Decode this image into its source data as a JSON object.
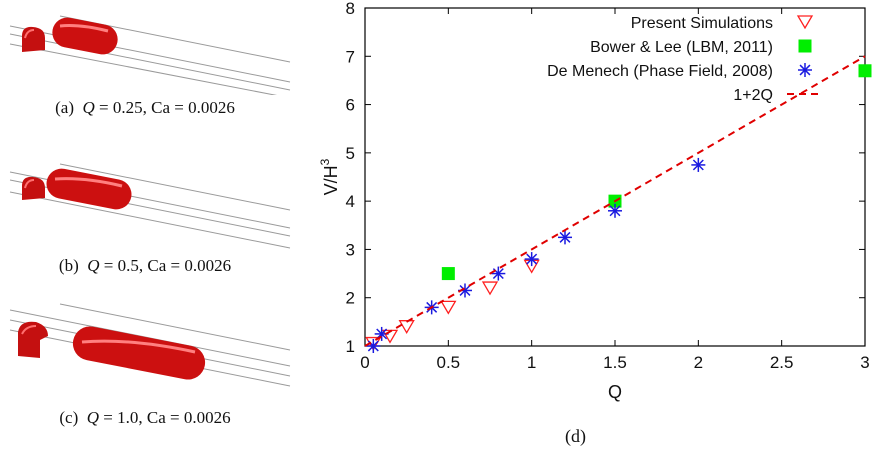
{
  "panels": [
    {
      "label": "(a)",
      "q_sym": "Q",
      "q_val": "0.25",
      "ca_sym": "Ca",
      "ca_val": "0.0026"
    },
    {
      "label": "(b)",
      "q_sym": "Q",
      "q_val": "0.5",
      "ca_sym": "Ca",
      "ca_val": "0.0026"
    },
    {
      "label": "(c)",
      "q_sym": "Q",
      "q_val": "1.0",
      "ca_sym": "Ca",
      "ca_val": "0.0026"
    }
  ],
  "colors": {
    "droplet": "#d01010",
    "channel_line": "#9a9a9a",
    "present": "#ff2020",
    "bower": "#00ee00",
    "demenech": "#1a1ae0",
    "fit": "#e00000"
  },
  "chart_data": {
    "type": "scatter",
    "panel_label": "(d)",
    "xlabel": "Q",
    "ylabel_base": "V/H",
    "ylabel_sup": "3",
    "xlim": [
      0,
      3
    ],
    "ylim": [
      1,
      8
    ],
    "xticks": [
      "0",
      "0.5",
      "1",
      "1.5",
      "2",
      "2.5",
      "3"
    ],
    "yticks": [
      "1",
      "2",
      "3",
      "4",
      "5",
      "6",
      "7",
      "8"
    ],
    "grid": false,
    "legend_position": "top-right",
    "series": [
      {
        "name": "Present Simulations",
        "marker": "triangle-down-open",
        "x": [
          0.05,
          0.15,
          0.25,
          0.5,
          0.75,
          1.0
        ],
        "y": [
          1.05,
          1.2,
          1.4,
          1.8,
          2.2,
          2.65
        ]
      },
      {
        "name": "Bower & Lee (LBM, 2011)",
        "marker": "square-filled",
        "x": [
          0.5,
          1.5,
          3.0
        ],
        "y": [
          2.5,
          4.0,
          6.7
        ]
      },
      {
        "name": "De Menech (Phase Field, 2008)",
        "marker": "asterisk",
        "x": [
          0.05,
          0.1,
          0.4,
          0.6,
          0.8,
          1.0,
          1.2,
          1.5,
          2.0
        ],
        "y": [
          1.0,
          1.25,
          1.8,
          2.15,
          2.5,
          2.8,
          3.25,
          3.8,
          4.75
        ]
      },
      {
        "name": "1+2Q",
        "marker": "dashed-line",
        "x": [
          0,
          3
        ],
        "y": [
          1,
          7
        ]
      }
    ]
  }
}
